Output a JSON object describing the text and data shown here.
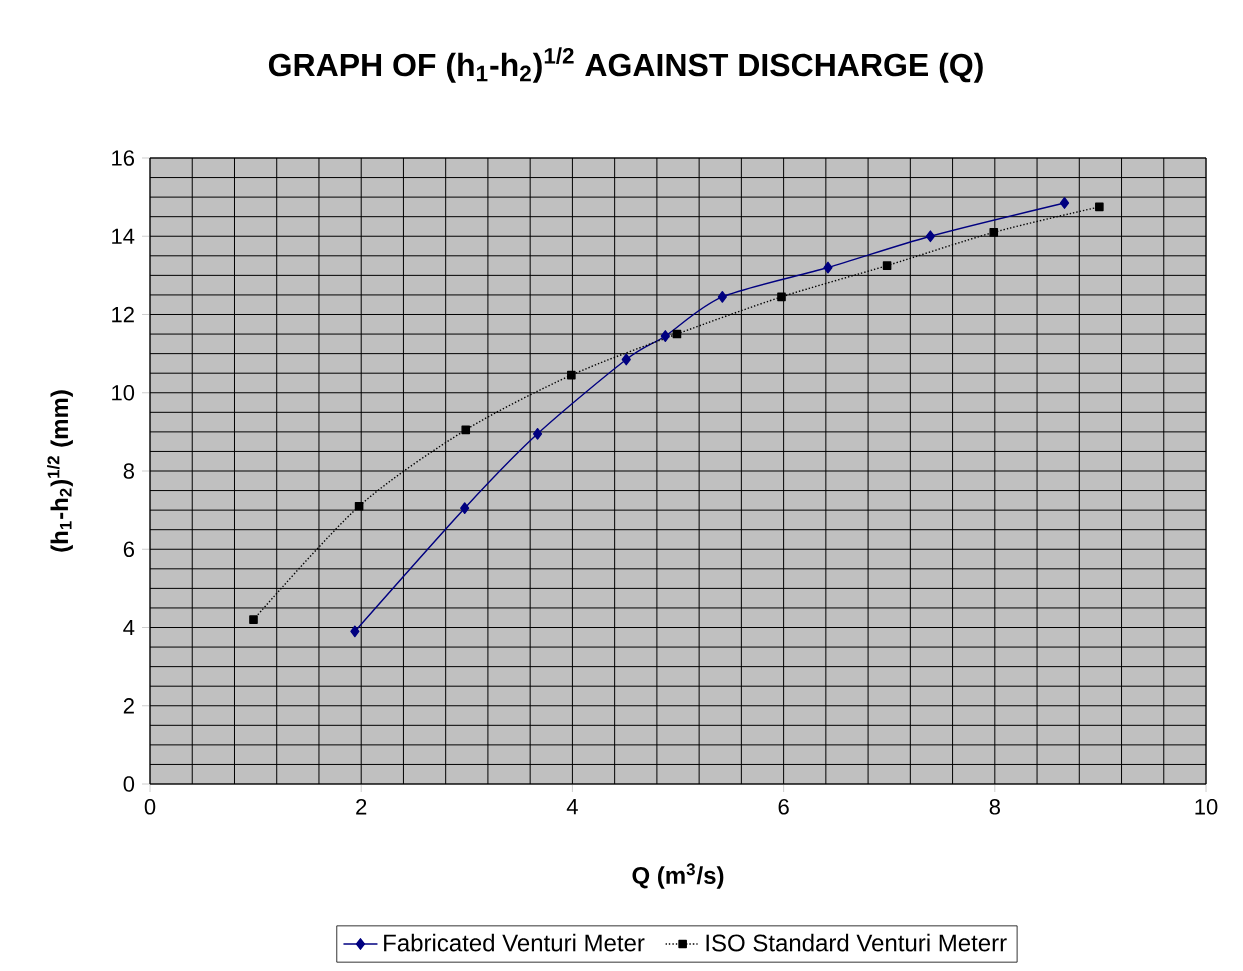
{
  "chart_data": {
    "type": "line",
    "title": "GRAPH OF (h$_{1}$-h$_{2}$)$^{1/2}$ AGAINST DISCHARGE (Q)",
    "xlabel": "Q (m$^{3}$/s)",
    "ylabel": "(h$_{1}$-h$_{2}$)$^{1/2}$ (mm)",
    "series": [
      {
        "name": "Fabricated Venturi Meter",
        "color": "#000080",
        "marker": "diamond",
        "line_style": "solid",
        "x": [
          1.94,
          2.98,
          3.67,
          4.51,
          4.88,
          5.42,
          6.42,
          7.39,
          8.66
        ],
        "values": [
          3.9,
          7.05,
          8.95,
          10.85,
          11.45,
          12.45,
          13.2,
          14.0,
          14.85
        ]
      },
      {
        "name": "ISO Standard Venturi Meterr",
        "color": "#000000",
        "marker": "square",
        "line_style": "dotted",
        "x": [
          0.98,
          1.98,
          2.99,
          3.99,
          4.99,
          5.98,
          6.98,
          7.99,
          8.99
        ],
        "values": [
          4.2,
          7.1,
          9.05,
          10.45,
          11.5,
          12.45,
          13.25,
          14.1,
          14.75
        ]
      }
    ],
    "xlim": [
      0,
      10
    ],
    "ylim": [
      0,
      16
    ],
    "xticks": [
      0,
      2,
      4,
      6,
      8,
      10
    ],
    "yticks": [
      0,
      2,
      4,
      6,
      8,
      10,
      12,
      14,
      16
    ],
    "grid": true,
    "legend": "bottom"
  }
}
